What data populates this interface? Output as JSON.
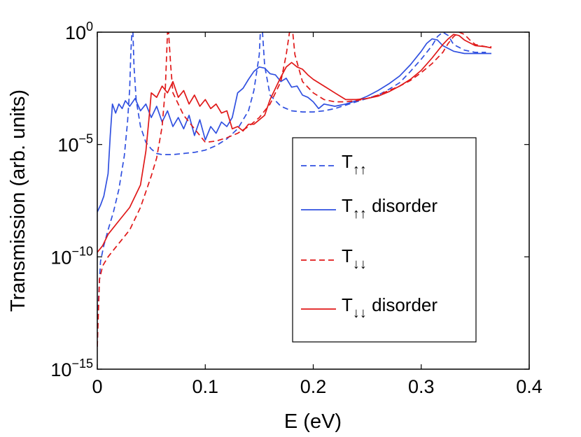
{
  "chart_data": {
    "type": "line",
    "title": "",
    "xlabel": "E (eV)",
    "ylabel": "Transmission (arb. units)",
    "xlim": [
      0,
      0.4
    ],
    "ylim_log10": [
      -15,
      0
    ],
    "yscale": "log",
    "grid": false,
    "legend_position": "right-center",
    "x_ticks": [
      {
        "value": 0,
        "label": "0"
      },
      {
        "value": 0.1,
        "label": "0.1"
      },
      {
        "value": 0.2,
        "label": "0.2"
      },
      {
        "value": 0.3,
        "label": "0.3"
      },
      {
        "value": 0.4,
        "label": "0.4"
      }
    ],
    "y_ticks": [
      {
        "exponent": 0,
        "base": "10",
        "sup": "0"
      },
      {
        "exponent": -5,
        "base": "10",
        "sup": "−5"
      },
      {
        "exponent": -10,
        "base": "10",
        "sup": "−10"
      },
      {
        "exponent": -15,
        "base": "10",
        "sup": "−15"
      }
    ],
    "series": [
      {
        "name": "T↑↑",
        "label_main": "T",
        "label_sub": "↑↑",
        "label_suffix": "",
        "color": "#3050e0",
        "style": "dashed",
        "points": [
          [
            0,
            -14
          ],
          [
            0.001,
            -12
          ],
          [
            0.003,
            -10.2
          ],
          [
            0.006,
            -9.5
          ],
          [
            0.01,
            -8.8
          ],
          [
            0.015,
            -8
          ],
          [
            0.02,
            -7
          ],
          [
            0.025,
            -5.5
          ],
          [
            0.028,
            -4
          ],
          [
            0.03,
            -2.5
          ],
          [
            0.031,
            -1
          ],
          [
            0.032,
            0
          ],
          [
            0.033,
            0
          ],
          [
            0.034,
            -1.5
          ],
          [
            0.036,
            -3
          ],
          [
            0.04,
            -4.2
          ],
          [
            0.045,
            -4.9
          ],
          [
            0.05,
            -5.2
          ],
          [
            0.055,
            -5.4
          ],
          [
            0.06,
            -5.45
          ],
          [
            0.07,
            -5.45
          ],
          [
            0.08,
            -5.4
          ],
          [
            0.09,
            -5.35
          ],
          [
            0.1,
            -5.25
          ],
          [
            0.11,
            -5.05
          ],
          [
            0.12,
            -4.75
          ],
          [
            0.13,
            -4.3
          ],
          [
            0.14,
            -3.5
          ],
          [
            0.145,
            -2.6
          ],
          [
            0.15,
            -1
          ],
          [
            0.151,
            0
          ],
          [
            0.153,
            0
          ],
          [
            0.155,
            -1.5
          ],
          [
            0.16,
            -2.8
          ],
          [
            0.17,
            -3.3
          ],
          [
            0.18,
            -3.5
          ],
          [
            0.19,
            -3.55
          ],
          [
            0.2,
            -3.55
          ],
          [
            0.21,
            -3.5
          ],
          [
            0.22,
            -3.4
          ],
          [
            0.23,
            -3.25
          ],
          [
            0.24,
            -3.1
          ],
          [
            0.25,
            -2.95
          ],
          [
            0.26,
            -2.8
          ],
          [
            0.27,
            -2.55
          ],
          [
            0.28,
            -2.25
          ],
          [
            0.29,
            -1.75
          ],
          [
            0.3,
            -1.2
          ],
          [
            0.31,
            -0.6
          ],
          [
            0.315,
            -0.2
          ],
          [
            0.32,
            0
          ],
          [
            0.325,
            -0.15
          ],
          [
            0.33,
            -0.55
          ],
          [
            0.34,
            -0.8
          ],
          [
            0.35,
            -0.9
          ],
          [
            0.36,
            -0.9
          ]
        ]
      },
      {
        "name": "T↑↑ disorder",
        "label_main": "T",
        "label_sub": "↑↑",
        "label_suffix": " disorder",
        "color": "#3050e0",
        "style": "solid",
        "points": [
          [
            0,
            -8
          ],
          [
            0.003,
            -7.7
          ],
          [
            0.006,
            -7.3
          ],
          [
            0.01,
            -6.3
          ],
          [
            0.012,
            -4.6
          ],
          [
            0.014,
            -3.2
          ],
          [
            0.017,
            -3.6
          ],
          [
            0.02,
            -3.2
          ],
          [
            0.023,
            -3.4
          ],
          [
            0.026,
            -3.05
          ],
          [
            0.03,
            -3.3
          ],
          [
            0.035,
            -2.95
          ],
          [
            0.04,
            -3.5
          ],
          [
            0.045,
            -3.2
          ],
          [
            0.05,
            -3.8
          ],
          [
            0.055,
            -3.3
          ],
          [
            0.06,
            -4
          ],
          [
            0.065,
            -3.5
          ],
          [
            0.07,
            -4.2
          ],
          [
            0.075,
            -3.8
          ],
          [
            0.08,
            -4.3
          ],
          [
            0.085,
            -3.7
          ],
          [
            0.09,
            -4.6
          ],
          [
            0.095,
            -3.9
          ],
          [
            0.1,
            -4.8
          ],
          [
            0.105,
            -4.2
          ],
          [
            0.11,
            -4.5
          ],
          [
            0.115,
            -4
          ],
          [
            0.12,
            -4.2
          ],
          [
            0.125,
            -3.8
          ],
          [
            0.13,
            -2.7
          ],
          [
            0.135,
            -2.5
          ],
          [
            0.14,
            -2.1
          ],
          [
            0.145,
            -1.75
          ],
          [
            0.15,
            -1.55
          ],
          [
            0.155,
            -1.6
          ],
          [
            0.16,
            -1.85
          ],
          [
            0.165,
            -1.9
          ],
          [
            0.17,
            -2.2
          ],
          [
            0.175,
            -2.05
          ],
          [
            0.18,
            -2.45
          ],
          [
            0.185,
            -2.4
          ],
          [
            0.19,
            -2.8
          ],
          [
            0.195,
            -2.9
          ],
          [
            0.2,
            -3.1
          ],
          [
            0.205,
            -3.4
          ],
          [
            0.21,
            -3.2
          ],
          [
            0.22,
            -3.3
          ],
          [
            0.23,
            -3.2
          ],
          [
            0.24,
            -3.05
          ],
          [
            0.25,
            -2.85
          ],
          [
            0.26,
            -2.6
          ],
          [
            0.27,
            -2.3
          ],
          [
            0.28,
            -1.95
          ],
          [
            0.29,
            -1.45
          ],
          [
            0.3,
            -0.85
          ],
          [
            0.305,
            -0.5
          ],
          [
            0.31,
            -0.3
          ],
          [
            0.315,
            -0.35
          ],
          [
            0.32,
            -0.6
          ],
          [
            0.33,
            -0.85
          ],
          [
            0.34,
            -0.95
          ],
          [
            0.35,
            -0.95
          ],
          [
            0.36,
            -0.95
          ],
          [
            0.365,
            -0.95
          ]
        ]
      },
      {
        "name": "T↓↓",
        "label_main": "T",
        "label_sub": "↓↓",
        "label_suffix": "",
        "color": "#e01818",
        "style": "dashed",
        "points": [
          [
            0,
            -14
          ],
          [
            0.002,
            -11
          ],
          [
            0.005,
            -10.4
          ],
          [
            0.01,
            -10
          ],
          [
            0.015,
            -9.7
          ],
          [
            0.02,
            -9.4
          ],
          [
            0.03,
            -8.8
          ],
          [
            0.04,
            -7.8
          ],
          [
            0.05,
            -6.4
          ],
          [
            0.055,
            -5.6
          ],
          [
            0.06,
            -4.2
          ],
          [
            0.063,
            -2.5
          ],
          [
            0.065,
            0
          ],
          [
            0.066,
            0
          ],
          [
            0.068,
            -1.5
          ],
          [
            0.07,
            -2.7
          ],
          [
            0.08,
            -3.7
          ],
          [
            0.09,
            -4.3
          ],
          [
            0.1,
            -4.9
          ],
          [
            0.11,
            -4.85
          ],
          [
            0.12,
            -4.7
          ],
          [
            0.13,
            -4.5
          ],
          [
            0.14,
            -4.2
          ],
          [
            0.15,
            -3.8
          ],
          [
            0.16,
            -3.2
          ],
          [
            0.17,
            -2.2
          ],
          [
            0.175,
            -1
          ],
          [
            0.178,
            0
          ],
          [
            0.181,
            0
          ],
          [
            0.183,
            -1
          ],
          [
            0.19,
            -2.2
          ],
          [
            0.2,
            -2.7
          ],
          [
            0.21,
            -3.0
          ],
          [
            0.22,
            -3.1
          ],
          [
            0.23,
            -3.1
          ],
          [
            0.24,
            -3.05
          ],
          [
            0.25,
            -2.95
          ],
          [
            0.26,
            -2.8
          ],
          [
            0.27,
            -2.6
          ],
          [
            0.28,
            -2.4
          ],
          [
            0.29,
            -2.15
          ],
          [
            0.3,
            -1.8
          ],
          [
            0.31,
            -1.4
          ],
          [
            0.32,
            -0.9
          ],
          [
            0.325,
            -0.5
          ],
          [
            0.33,
            -0.2
          ],
          [
            0.335,
            0
          ],
          [
            0.34,
            -0.1
          ],
          [
            0.345,
            -0.35
          ],
          [
            0.35,
            -0.55
          ],
          [
            0.36,
            -0.65
          ],
          [
            0.365,
            -0.65
          ]
        ]
      },
      {
        "name": "T↓↓ disorder",
        "label_main": "T",
        "label_sub": "↓↓",
        "label_suffix": " disorder",
        "color": "#e01818",
        "style": "solid",
        "points": [
          [
            0,
            -9.8
          ],
          [
            0.005,
            -9.5
          ],
          [
            0.01,
            -9
          ],
          [
            0.02,
            -8.4
          ],
          [
            0.03,
            -7.8
          ],
          [
            0.04,
            -6.8
          ],
          [
            0.045,
            -5.3
          ],
          [
            0.048,
            -3.8
          ],
          [
            0.05,
            -2.7
          ],
          [
            0.055,
            -2.9
          ],
          [
            0.06,
            -2.4
          ],
          [
            0.065,
            -2.7
          ],
          [
            0.07,
            -2.2
          ],
          [
            0.075,
            -2.9
          ],
          [
            0.08,
            -2.6
          ],
          [
            0.085,
            -3.2
          ],
          [
            0.09,
            -2.8
          ],
          [
            0.095,
            -3.3
          ],
          [
            0.1,
            -3.0
          ],
          [
            0.105,
            -3.4
          ],
          [
            0.11,
            -3.2
          ],
          [
            0.115,
            -3.6
          ],
          [
            0.12,
            -3.5
          ],
          [
            0.125,
            -4.3
          ],
          [
            0.13,
            -4.2
          ],
          [
            0.135,
            -4.4
          ],
          [
            0.14,
            -4.1
          ],
          [
            0.145,
            -4.1
          ],
          [
            0.15,
            -3.9
          ],
          [
            0.155,
            -3.7
          ],
          [
            0.16,
            -3.0
          ],
          [
            0.165,
            -2.5
          ],
          [
            0.17,
            -2.0
          ],
          [
            0.175,
            -1.55
          ],
          [
            0.18,
            -1.35
          ],
          [
            0.185,
            -1.55
          ],
          [
            0.19,
            -1.65
          ],
          [
            0.195,
            -1.9
          ],
          [
            0.2,
            -2.1
          ],
          [
            0.21,
            -2.4
          ],
          [
            0.22,
            -2.7
          ],
          [
            0.23,
            -3.0
          ],
          [
            0.24,
            -3.0
          ],
          [
            0.25,
            -2.95
          ],
          [
            0.26,
            -2.85
          ],
          [
            0.27,
            -2.65
          ],
          [
            0.28,
            -2.4
          ],
          [
            0.29,
            -2.1
          ],
          [
            0.3,
            -1.7
          ],
          [
            0.31,
            -1.15
          ],
          [
            0.32,
            -0.55
          ],
          [
            0.325,
            -0.3
          ],
          [
            0.33,
            -0.1
          ],
          [
            0.335,
            -0.15
          ],
          [
            0.34,
            -0.35
          ],
          [
            0.35,
            -0.6
          ],
          [
            0.36,
            -0.65
          ],
          [
            0.365,
            -0.7
          ]
        ]
      }
    ]
  }
}
